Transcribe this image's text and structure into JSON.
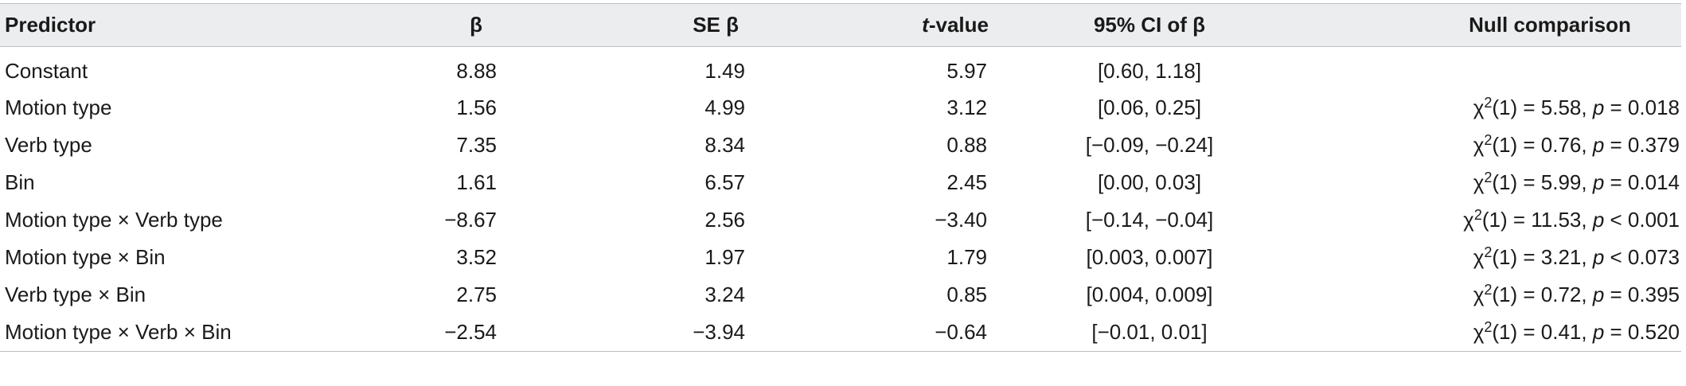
{
  "table": {
    "headers": {
      "predictor": "Predictor",
      "beta": "β",
      "se_beta": "SE β",
      "t_value_italic": "t",
      "t_value_rest": "-value",
      "ci": "95% CI of β",
      "null": "Null comparison"
    },
    "rows": [
      {
        "predictor": "Constant",
        "beta": "8.88",
        "se": "1.49",
        "t": "5.97",
        "ci": "[0.60, 1.18]",
        "null": null
      },
      {
        "predictor": "Motion type",
        "beta": "1.56",
        "se": "4.99",
        "t": "3.12",
        "ci": "[0.06, 0.25]",
        "null": {
          "chi": "χ",
          "sup": "2",
          "df_stat": "(1) = 5.58, ",
          "p": "p",
          "p_val": " = 0.018"
        }
      },
      {
        "predictor": "Verb type",
        "beta": "7.35",
        "se": "8.34",
        "t": "0.88",
        "ci": "[−0.09, −0.24]",
        "null": {
          "chi": "χ",
          "sup": "2",
          "df_stat": "(1) = 0.76, ",
          "p": "p",
          "p_val": " = 0.379"
        }
      },
      {
        "predictor": "Bin",
        "beta": "1.61",
        "se": "6.57",
        "t": "2.45",
        "ci": "[0.00, 0.03]",
        "null": {
          "chi": "χ",
          "sup": "2",
          "df_stat": "(1) = 5.99, ",
          "p": "p",
          "p_val": " = 0.014"
        }
      },
      {
        "predictor": "Motion type × Verb type",
        "beta": "−8.67",
        "se": "2.56",
        "t": "−3.40",
        "ci": "[−0.14, −0.04]",
        "null": {
          "chi": "χ",
          "sup": "2",
          "df_stat": "(1) = 11.53, ",
          "p": "p",
          "p_val": " < 0.001"
        }
      },
      {
        "predictor": "Motion type × Bin",
        "beta": "3.52",
        "se": "1.97",
        "t": "1.79",
        "ci": "[0.003, 0.007]",
        "null": {
          "chi": "χ",
          "sup": "2",
          "df_stat": "(1) = 3.21, ",
          "p": "p",
          "p_val": " < 0.073"
        }
      },
      {
        "predictor": "Verb type × Bin",
        "beta": "2.75",
        "se": "3.24",
        "t": "0.85",
        "ci": "[0.004, 0.009]",
        "null": {
          "chi": "χ",
          "sup": "2",
          "df_stat": "(1) = 0.72, ",
          "p": "p",
          "p_val": " = 0.395"
        }
      },
      {
        "predictor": "Motion type × Verb × Bin",
        "beta": "−2.54",
        "se": "−3.94",
        "t": "−0.64",
        "ci": "[−0.01, 0.01]",
        "null": {
          "chi": "χ",
          "sup": "2",
          "df_stat": "(1) = 0.41, ",
          "p": "p",
          "p_val": " = 0.520"
        }
      }
    ]
  }
}
